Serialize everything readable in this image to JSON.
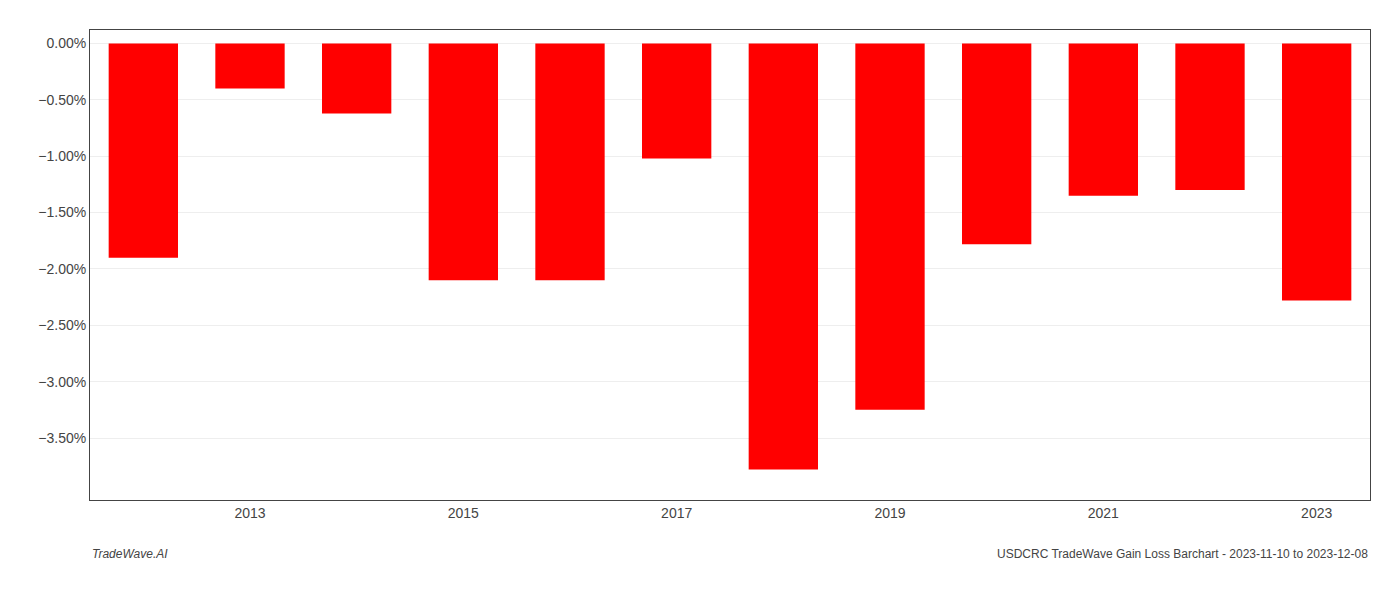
{
  "chart_data": {
    "type": "bar",
    "categories": [
      null,
      "2013",
      null,
      "2015",
      null,
      "2017",
      null,
      "2019",
      null,
      "2021",
      null,
      "2023"
    ],
    "values": [
      -1.9,
      -0.4,
      -0.62,
      -2.1,
      -2.1,
      -1.02,
      -3.78,
      -3.25,
      -1.78,
      -1.35,
      -1.3,
      -2.28
    ],
    "color": "#ff0000",
    "ylim": [
      -4.05,
      0.12
    ],
    "yticks": [
      {
        "value": 0.0,
        "label": "0.00%"
      },
      {
        "value": -0.5,
        "label": "−0.50%"
      },
      {
        "value": -1.0,
        "label": "−1.00%"
      },
      {
        "value": -1.5,
        "label": "−1.50%"
      },
      {
        "value": -2.0,
        "label": "−2.00%"
      },
      {
        "value": -2.5,
        "label": "−2.50%"
      },
      {
        "value": -3.0,
        "label": "−3.00%"
      },
      {
        "value": -3.5,
        "label": "−3.50%"
      }
    ],
    "grid": true,
    "annotations": [
      "TradeWave.AI",
      "USDCRC TradeWave Gain Loss Barchart - 2023-11-10 to 2023-12-08"
    ]
  }
}
